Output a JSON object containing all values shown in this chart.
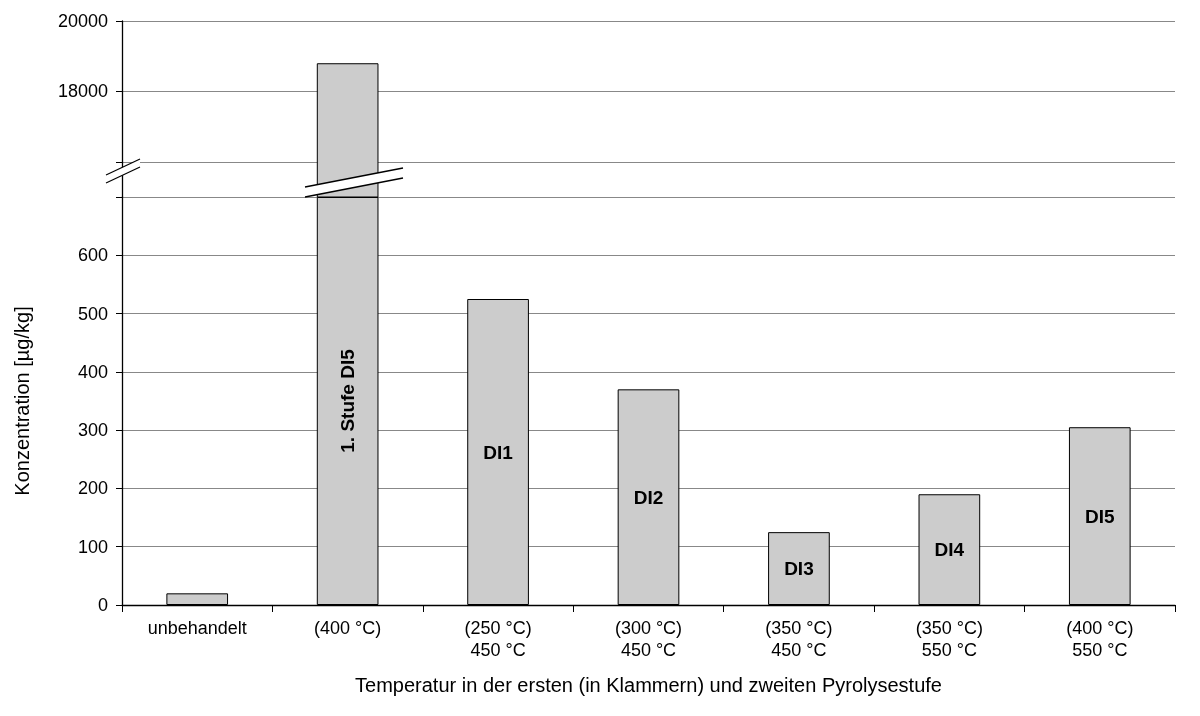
{
  "chart_data": [
    {
      "type": "bar",
      "series": [
        {
          "color": "#cccccc",
          "values": [
            null,
            18800,
            null,
            null,
            null,
            null,
            null
          ]
        }
      ],
      "ylim": [
        15000,
        20000
      ],
      "yticks": [
        {
          "value": 16000,
          "label": null
        },
        18000,
        20000
      ],
      "grid": "y",
      "tick_labels": "y"
    },
    {
      "type": "bar",
      "categories": [
        "unbehandelt",
        "(400 °C)",
        "(250 °C)\n450 °C",
        "(300 °C)\n450 °C",
        "(350 °C)\n450 °C",
        "(350 °C)\n550 °C",
        "(400 °C)\n550 °C"
      ],
      "stacked": true,
      "series": [
        {
          "color": "#cccccc",
          "values": [
            20,
            null,
            null,
            null,
            null,
            null,
            null
          ]
        },
        {
          "name": "1. Stufe DI5",
          "color": "#cccccc",
          "values": [
            null,
            700,
            null,
            null,
            null,
            null,
            null
          ]
        },
        {
          "name": "DI1",
          "color": "#cccccc",
          "values": [
            null,
            null,
            525,
            null,
            null,
            null,
            null
          ]
        },
        {
          "name": "DI2",
          "color": "#cccccc",
          "values": [
            null,
            null,
            null,
            370,
            null,
            null,
            null
          ]
        },
        {
          "name": "DI3",
          "color": "#cccccc",
          "values": [
            null,
            null,
            null,
            null,
            125,
            null,
            null
          ]
        },
        {
          "name": "DI4",
          "color": "#cccccc",
          "values": [
            null,
            null,
            null,
            null,
            null,
            190,
            null
          ]
        },
        {
          "name": "DI5",
          "color": "#cccccc",
          "values": [
            null,
            null,
            null,
            null,
            null,
            null,
            305
          ]
        }
      ],
      "ylim": [
        0,
        700
      ],
      "yticks": [
        0,
        100,
        200,
        300,
        400,
        500,
        600,
        {
          "value": 700,
          "label": null
        }
      ],
      "grid": "y",
      "xlabel": "Temperatur in der ersten (in Klammern) und zweiten Pyrolysestufe",
      "ylabel": "Konzentration [µg/kg]"
    }
  ]
}
